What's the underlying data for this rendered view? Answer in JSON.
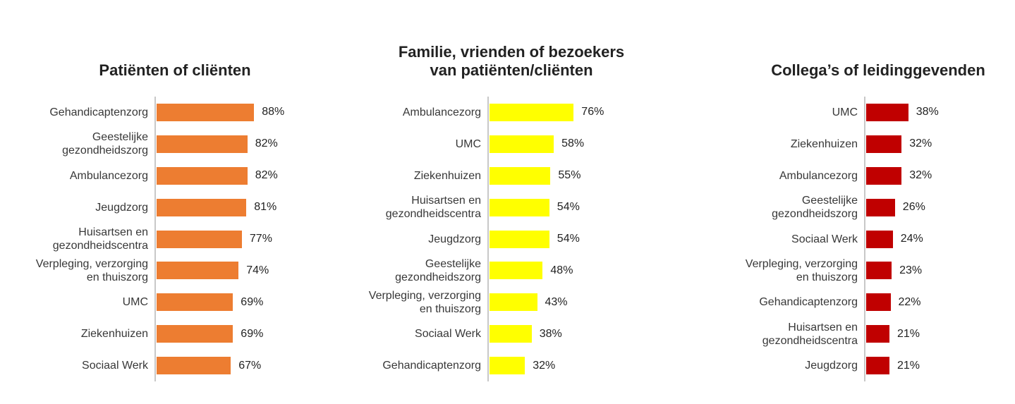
{
  "page": {
    "background_color": "#FFFFFF",
    "text_color": "#383838",
    "title_color": "#222222",
    "axis_line_color": "#C8C8C8"
  },
  "chart_data": [
    {
      "type": "bar",
      "orientation": "horizontal",
      "title": "Patiënten of cliënten",
      "title_lines": [
        "Patiënten of cliënten"
      ],
      "bar_color": "#ED7D31",
      "unit": "%",
      "xlim": [
        0,
        100
      ],
      "grid": false,
      "legend": null,
      "data_labels": true,
      "categories": [
        "Gehandicaptenzorg",
        "Geestelijke gezondheidszorg",
        "Ambulancezorg",
        "Jeugdzorg",
        "Huisartsen en gezondheidscentra",
        "Verpleging, verzorging en thuiszorg",
        "UMC",
        "Ziekenhuizen",
        "Sociaal Werk"
      ],
      "values": [
        88,
        82,
        82,
        81,
        77,
        74,
        69,
        69,
        67
      ]
    },
    {
      "type": "bar",
      "orientation": "horizontal",
      "title": "Familie, vrienden of bezoekers van patiënten/cliënten",
      "title_lines": [
        "Familie, vrienden of bezoekers",
        "van patiënten/cliënten"
      ],
      "bar_color": "#FFFF00",
      "unit": "%",
      "xlim": [
        0,
        100
      ],
      "grid": false,
      "legend": null,
      "data_labels": true,
      "categories": [
        "Ambulancezorg",
        "UMC",
        "Ziekenhuizen",
        "Huisartsen en gezondheidscentra",
        "Jeugdzorg",
        "Geestelijke gezondheidszorg",
        "Verpleging, verzorging en thuiszorg",
        "Sociaal Werk",
        "Gehandicaptenzorg"
      ],
      "values": [
        76,
        58,
        55,
        54,
        54,
        48,
        43,
        38,
        32
      ]
    },
    {
      "type": "bar",
      "orientation": "horizontal",
      "title": "Collega’s of leidinggevenden",
      "title_lines": [
        "Collega’s of leidinggevenden"
      ],
      "bar_color": "#C00000",
      "unit": "%",
      "xlim": [
        0,
        100
      ],
      "grid": false,
      "legend": null,
      "data_labels": true,
      "categories": [
        "UMC",
        "Ziekenhuizen",
        "Ambulancezorg",
        "Geestelijke gezondheidszorg",
        "Sociaal Werk",
        "Verpleging, verzorging en thuiszorg",
        "Gehandicaptenzorg",
        "Huisartsen en gezondheidscentra",
        "Jeugdzorg"
      ],
      "values": [
        38,
        32,
        32,
        26,
        24,
        23,
        22,
        21,
        21
      ]
    }
  ]
}
